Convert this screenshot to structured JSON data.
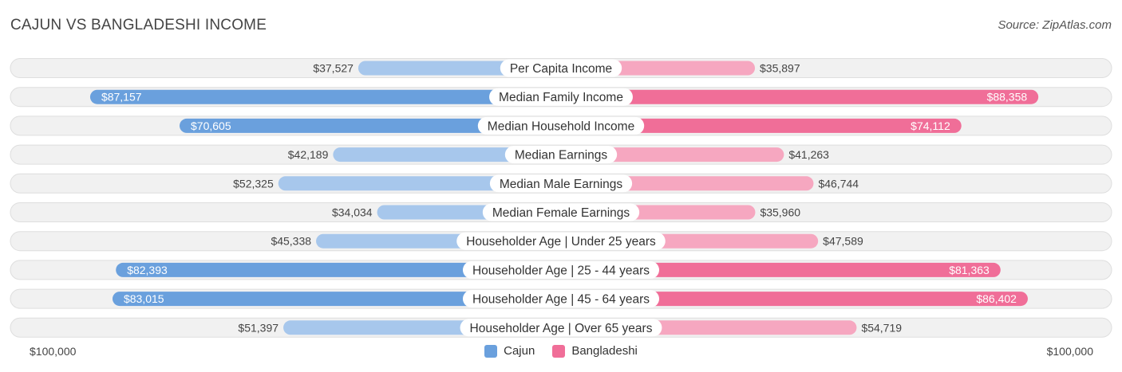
{
  "title": "CAJUN VS BANGLADESHI INCOME",
  "source": "Source: ZipAtlas.com",
  "colors": {
    "cajun_dark": "#6aa0dd",
    "cajun_light": "#a7c7ec",
    "bangladeshi_dark": "#f06e98",
    "bangladeshi_light": "#f6a7c0"
  },
  "chart_data": {
    "type": "bar",
    "orientation": "horizontal-diverging",
    "title": "CAJUN VS BANGLADESHI INCOME",
    "categories": [
      "Per Capita Income",
      "Median Family Income",
      "Median Household Income",
      "Median Earnings",
      "Median Male Earnings",
      "Median Female Earnings",
      "Householder Age | Under 25 years",
      "Householder Age | 25 - 44 years",
      "Householder Age | 45 - 64 years",
      "Householder Age | Over 65 years"
    ],
    "series": [
      {
        "name": "Cajun",
        "values": [
          37527,
          87157,
          70605,
          42189,
          52325,
          34034,
          45338,
          82393,
          83015,
          51397
        ],
        "labels": [
          "$37,527",
          "$87,157",
          "$70,605",
          "$42,189",
          "$52,325",
          "$34,034",
          "$45,338",
          "$82,393",
          "$83,015",
          "$51,397"
        ]
      },
      {
        "name": "Bangladeshi",
        "values": [
          35897,
          88358,
          74112,
          41263,
          46744,
          35960,
          47589,
          81363,
          86402,
          54719
        ],
        "labels": [
          "$35,897",
          "$88,358",
          "$74,112",
          "$41,263",
          "$46,744",
          "$35,960",
          "$47,589",
          "$81,363",
          "$86,402",
          "$54,719"
        ]
      }
    ],
    "xlim": [
      0,
      100000
    ],
    "axis_left_label": "$100,000",
    "axis_right_label": "$100,000",
    "legend": [
      "Cajun",
      "Bangladeshi"
    ],
    "legend_position": "bottom-center"
  }
}
